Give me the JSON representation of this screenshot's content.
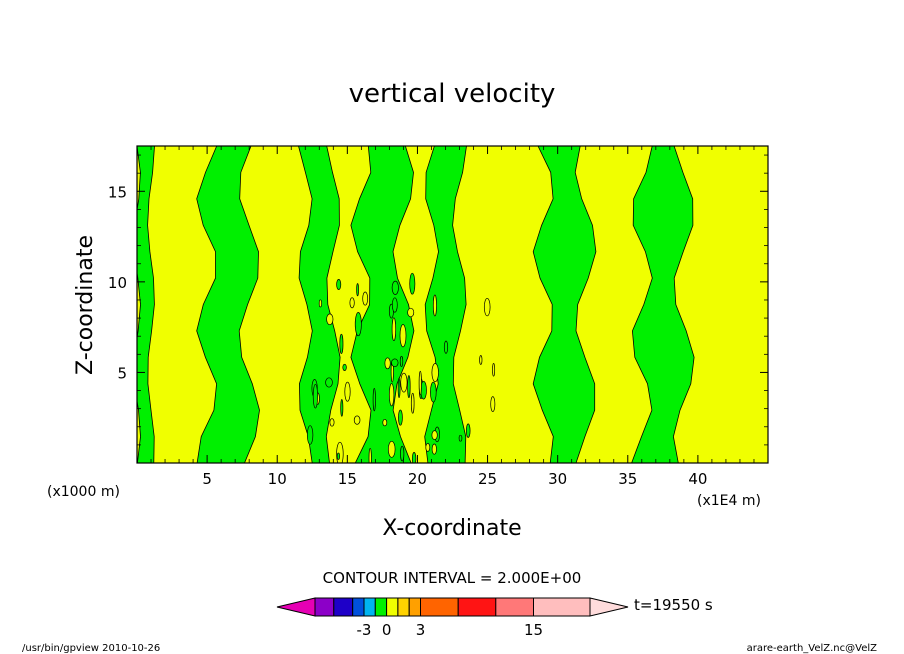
{
  "chart_data": {
    "type": "heatmap",
    "title": "vertical velocity",
    "xlabel": "X-coordinate",
    "ylabel": "Z-coordinate",
    "x_unit_label": "(x1000 m)",
    "x_scale_label": "(x1E4 m)",
    "xlim": [
      0,
      45
    ],
    "ylim": [
      0,
      17.5
    ],
    "x_ticks": [
      5,
      10,
      15,
      20,
      25,
      30,
      35,
      40
    ],
    "y_ticks": [
      5,
      10,
      15
    ],
    "colors": {
      "positive_small": "#f0ff00",
      "negative_small": "#00f000",
      "contour_line": "#000000"
    },
    "field_bands": [
      {
        "x_from": 0,
        "x_to": 1,
        "sign": "negative"
      },
      {
        "x_from": 1,
        "x_to": 5,
        "sign": "positive"
      },
      {
        "x_from": 5,
        "x_to": 8,
        "sign": "negative"
      },
      {
        "x_from": 8,
        "x_to": 9,
        "sign": "positive"
      },
      {
        "x_from": 9,
        "x_to": 12,
        "sign": "positive"
      },
      {
        "x_from": 12,
        "x_to": 14,
        "sign": "negative"
      },
      {
        "x_from": 14,
        "x_to": 16,
        "sign": "positive"
      },
      {
        "x_from": 16,
        "x_to": 19,
        "sign": "negative"
      },
      {
        "x_from": 19,
        "x_to": 21,
        "sign": "positive"
      },
      {
        "x_from": 21,
        "x_to": 23,
        "sign": "negative"
      },
      {
        "x_from": 23,
        "x_to": 26,
        "sign": "positive"
      },
      {
        "x_from": 26,
        "x_to": 29,
        "sign": "positive"
      },
      {
        "x_from": 29,
        "x_to": 32,
        "sign": "negative"
      },
      {
        "x_from": 32,
        "x_to": 36,
        "sign": "positive"
      },
      {
        "x_from": 36,
        "x_to": 39,
        "sign": "negative"
      },
      {
        "x_from": 39,
        "x_to": 45,
        "sign": "positive"
      }
    ],
    "contour_interval_label": "CONTOUR INTERVAL = 2.000E+00",
    "colorbar": {
      "colors": [
        "#e600b4",
        "#8c00c8",
        "#1e00c8",
        "#0050dc",
        "#00b4f0",
        "#00f000",
        "#f0ff00",
        "#ffd200",
        "#ffa000",
        "#ff6400",
        "#ff1414",
        "#ff7878",
        "#ffbebe",
        "#ffdcdc"
      ],
      "tick_labels": [
        "-3",
        "0",
        "3",
        "15"
      ],
      "time_label": "t=19550 s"
    }
  },
  "footer": {
    "left": "/usr/bin/gpview  2010-10-26",
    "right": "arare-earth_VelZ.nc@VelZ"
  }
}
